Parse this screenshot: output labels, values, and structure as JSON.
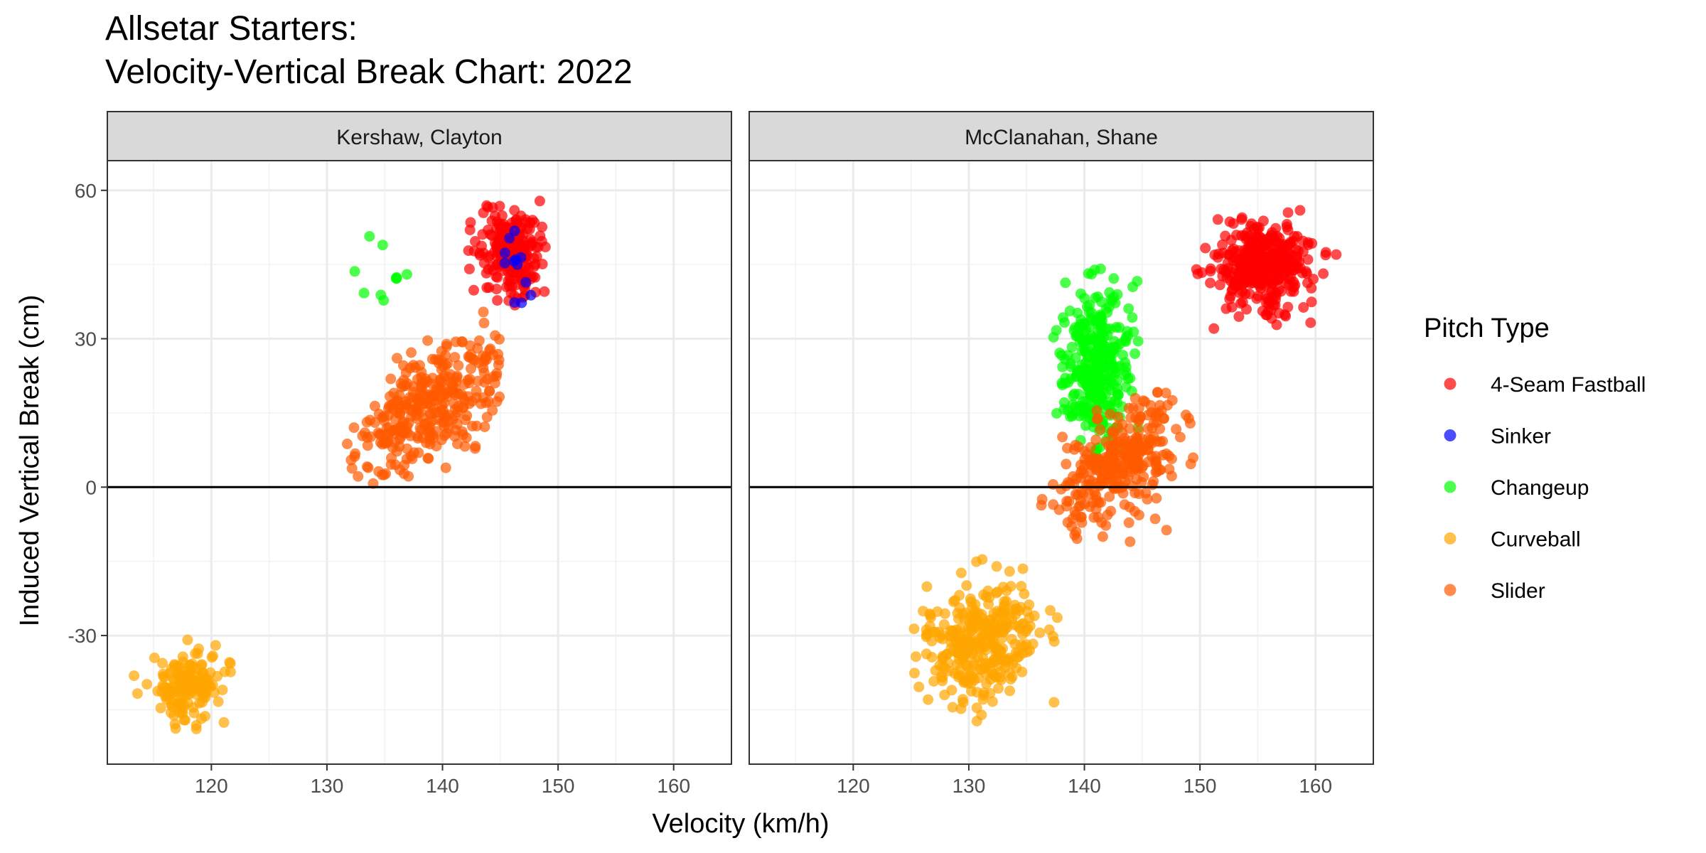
{
  "chart_data": {
    "type": "scatter",
    "title_lines": [
      "Allsetar Starters:",
      "Velocity-Vertical Break Chart: 2022"
    ],
    "xlabel": "Velocity (km/h)",
    "ylabel": "Induced Vertical Break (cm)",
    "xlim": [
      111,
      165
    ],
    "ylim": [
      -56,
      66
    ],
    "x_ticks": [
      120,
      130,
      140,
      150,
      160
    ],
    "y_ticks": [
      -30,
      0,
      30,
      60
    ],
    "grid": true,
    "reference_line_y": 0,
    "legend": {
      "title": "Pitch Type",
      "placement": "right",
      "entries": [
        {
          "label": "4-Seam Fastball",
          "color": "#ff0000"
        },
        {
          "label": "Sinker",
          "color": "#0000ff"
        },
        {
          "label": "Changeup",
          "color": "#00ff00"
        },
        {
          "label": "Curveball",
          "color": "#ffa500"
        },
        {
          "label": "Slider",
          "color": "#ff5a00"
        }
      ]
    },
    "panels": [
      {
        "strip": "Kershaw, Clayton",
        "clusters": [
          {
            "pitch": "Slider",
            "center": [
              139.0,
              16.0
            ],
            "spread": [
              3.2,
              7.0
            ],
            "corr": 0.55,
            "count": 330,
            "xrange": [
              131,
              145
            ],
            "yrange": [
              0,
              37
            ]
          },
          {
            "pitch": "Curveball",
            "center": [
              118.0,
              -40.0
            ],
            "spread": [
              1.5,
              3.5
            ],
            "corr": 0.3,
            "count": 160,
            "xrange": [
              113,
              122
            ],
            "yrange": [
              -51,
              -21
            ]
          },
          {
            "pitch": "4-Seam Fastball",
            "center": [
              146.0,
              48.0
            ],
            "spread": [
              1.3,
              4.5
            ],
            "corr": 0.0,
            "count": 230,
            "xrange": [
              142,
              150
            ],
            "yrange": [
              27,
              58
            ]
          },
          {
            "pitch": "Changeup",
            "center": [
              135.0,
              40.0
            ],
            "spread": [
              1.5,
              4.0
            ],
            "corr": 0.0,
            "count": 10,
            "xrange": [
              131,
              137
            ],
            "yrange": [
              34,
              52
            ]
          },
          {
            "pitch": "Sinker",
            "center": [
              146.5,
              46.0
            ],
            "spread": [
              0.6,
              5.0
            ],
            "corr": 0.0,
            "count": 12,
            "xrange": [
              144,
              148
            ],
            "yrange": [
              36,
              59
            ]
          }
        ]
      },
      {
        "strip": "McClanahan, Shane",
        "clusters": [
          {
            "pitch": "Curveball",
            "center": [
              131.0,
              -31.0
            ],
            "spread": [
              2.5,
              6.0
            ],
            "corr": 0.2,
            "count": 330,
            "xrange": [
              125,
              138
            ],
            "yrange": [
              -48,
              -11
            ]
          },
          {
            "pitch": "Changeup",
            "center": [
              141.0,
              24.0
            ],
            "spread": [
              1.6,
              8.0
            ],
            "corr": 0.0,
            "count": 330,
            "xrange": [
              136,
              146
            ],
            "yrange": [
              4,
              45
            ]
          },
          {
            "pitch": "Slider",
            "center": [
              143.0,
              5.0
            ],
            "spread": [
              2.6,
              7.0
            ],
            "corr": 0.45,
            "count": 300,
            "xrange": [
              136,
              150
            ],
            "yrange": [
              -16,
              20
            ]
          },
          {
            "pitch": "4-Seam Fastball",
            "center": [
              155.5,
              45.0
            ],
            "spread": [
              2.1,
              4.6
            ],
            "corr": 0.0,
            "count": 360,
            "xrange": [
              149,
              163
            ],
            "yrange": [
              30,
              56
            ]
          }
        ]
      }
    ]
  }
}
